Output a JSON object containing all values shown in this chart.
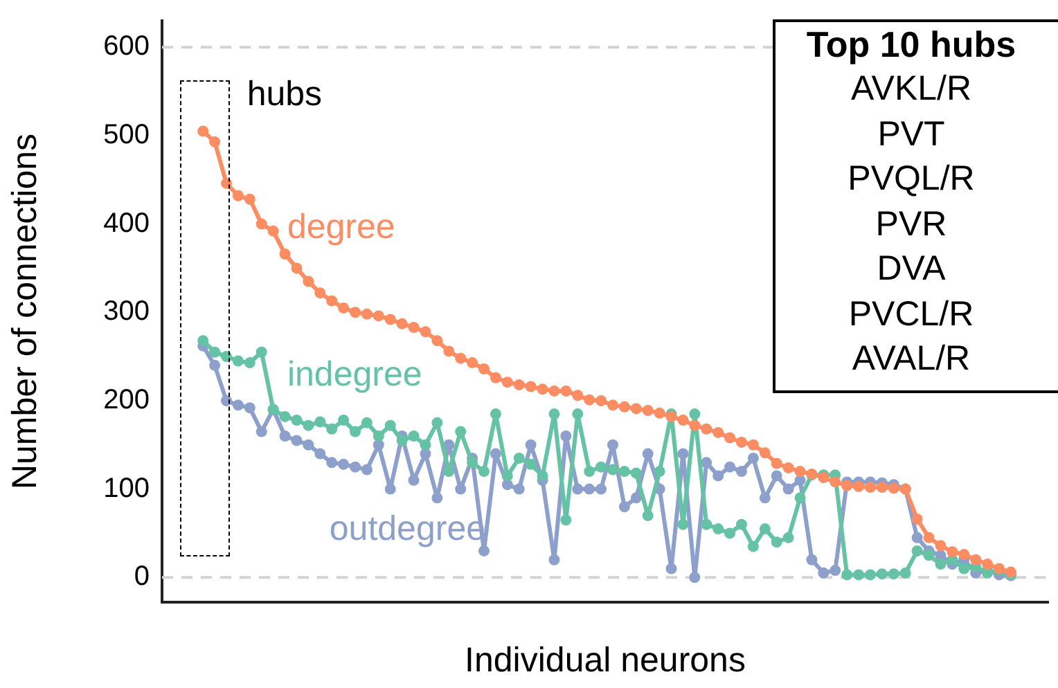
{
  "chart_data": {
    "type": "line",
    "xlabel": "Individual neurons",
    "ylabel": "Number of connections",
    "categories": [
      null,
      null,
      null,
      null,
      null,
      null,
      null,
      null,
      null,
      null,
      null,
      null,
      null,
      null,
      null,
      null,
      null,
      null,
      null,
      null,
      null,
      null,
      null,
      null,
      null,
      null,
      null,
      null,
      null,
      null,
      null,
      null,
      null,
      null,
      null,
      null,
      null,
      null,
      null,
      null,
      null,
      null,
      null,
      null,
      null,
      null,
      null,
      null,
      null,
      null,
      null,
      null,
      null,
      null,
      null,
      null,
      null,
      null,
      null,
      null,
      null,
      null,
      null,
      null,
      null,
      null,
      null,
      null,
      null,
      null
    ],
    "series": [
      {
        "name": "degree",
        "color": "#fc8d62",
        "values": [
          505,
          493,
          446,
          432,
          428,
          400,
          392,
          366,
          350,
          335,
          322,
          313,
          305,
          300,
          298,
          296,
          292,
          287,
          283,
          278,
          268,
          256,
          248,
          243,
          236,
          226,
          221,
          218,
          216,
          213,
          211,
          211,
          206,
          201,
          200,
          195,
          193,
          191,
          189,
          186,
          182,
          178,
          172,
          168,
          164,
          158,
          153,
          150,
          141,
          129,
          124,
          120,
          117,
          113,
          108,
          104,
          103,
          102,
          102,
          101,
          100,
          66,
          45,
          36,
          29,
          26,
          20,
          15,
          10,
          6
        ]
      },
      {
        "name": "indegree",
        "color": "#66c2a5",
        "values": [
          268,
          255,
          250,
          245,
          243,
          255,
          190,
          182,
          178,
          172,
          176,
          168,
          178,
          165,
          175,
          160,
          172,
          155,
          160,
          150,
          175,
          120,
          165,
          130,
          120,
          185,
          115,
          135,
          128,
          115,
          185,
          65,
          185,
          120,
          125,
          122,
          120,
          118,
          70,
          120,
          185,
          60,
          185,
          60,
          55,
          50,
          60,
          35,
          55,
          40,
          45,
          90,
          116,
          116,
          116,
          3,
          3,
          3,
          4,
          4,
          5,
          30,
          25,
          15,
          20,
          10,
          12,
          5,
          8,
          3
        ]
      },
      {
        "name": "outdegree",
        "color": "#8da0cb",
        "values": [
          262,
          240,
          200,
          195,
          192,
          165,
          190,
          160,
          155,
          150,
          140,
          130,
          128,
          125,
          122,
          150,
          100,
          160,
          110,
          140,
          90,
          150,
          100,
          135,
          30,
          140,
          105,
          100,
          150,
          110,
          20,
          160,
          100,
          100,
          100,
          150,
          80,
          90,
          140,
          100,
          10,
          140,
          0,
          130,
          115,
          125,
          120,
          135,
          90,
          115,
          100,
          110,
          20,
          5,
          8,
          108,
          108,
          108,
          107,
          105,
          100,
          45,
          30,
          25,
          15,
          20,
          5,
          8,
          3,
          2
        ]
      }
    ],
    "ylim": [
      -28,
      630
    ],
    "yticks": [
      0,
      100,
      200,
      300,
      400,
      500,
      600
    ],
    "tick_labels": "y",
    "grid": false,
    "legend": false,
    "marker": "circle",
    "line_style": "solid",
    "ref_lines": [
      {
        "axis": "y",
        "value": 0,
        "color": "#d3d3d3",
        "line_style": "dashed"
      },
      {
        "axis": "y",
        "value": 600,
        "color": "#d3d3d3",
        "line_style": "dashed"
      }
    ],
    "annotations": [
      "hubs",
      "Top 10 hubs",
      "AVKL/R",
      "PVT",
      "PVQL/R",
      "PVR",
      "DVA",
      "PVCL/R",
      "AVAL/R"
    ]
  }
}
